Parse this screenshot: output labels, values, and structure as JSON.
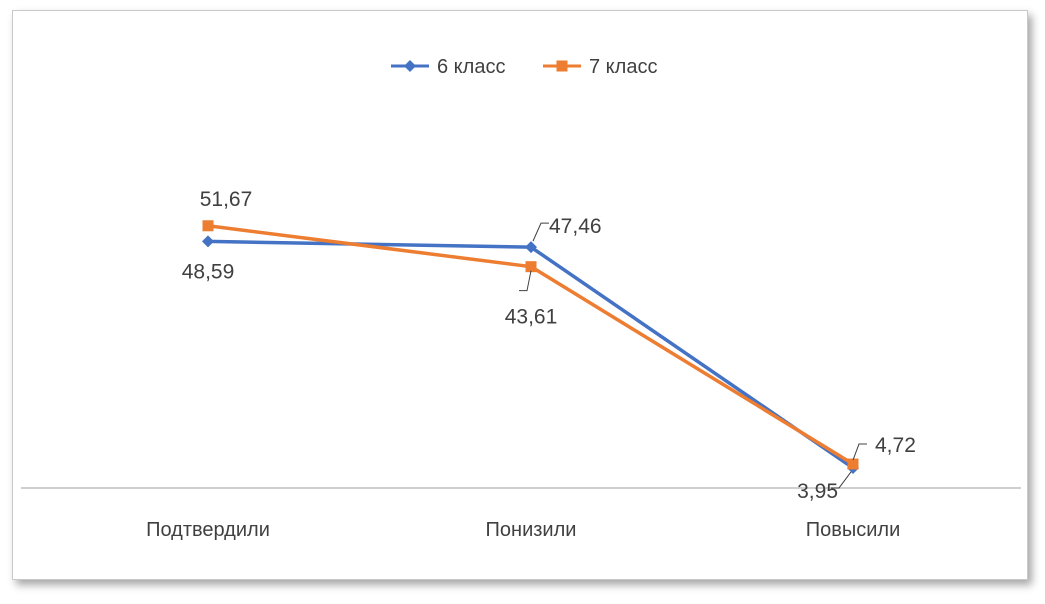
{
  "chart_data": {
    "type": "line",
    "categories": [
      "Подтвердили",
      "Понизили",
      "Повысили"
    ],
    "series": [
      {
        "name": "6 класс",
        "values": [
          48.59,
          47.46,
          3.95
        ],
        "labels": [
          "48,59",
          "47,46",
          "3,95"
        ],
        "color": "#4472C4",
        "marker": "diamond"
      },
      {
        "name": "7 класс",
        "values": [
          51.67,
          43.61,
          4.72
        ],
        "labels": [
          "51,67",
          "43,61",
          "4,72"
        ],
        "color": "#ED7D31",
        "marker": "square"
      }
    ],
    "ylim": [
      0,
      80
    ],
    "grid": false,
    "legend_position": "top"
  }
}
